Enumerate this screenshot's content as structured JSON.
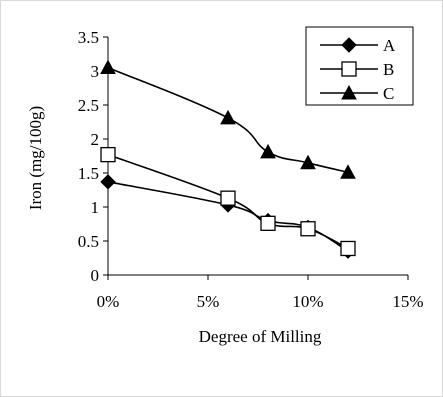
{
  "chart_data": {
    "type": "line",
    "xlabel": "Degree of Milling",
    "ylabel": "Iron (mg/100g)",
    "x_tick_labels": [
      "0%",
      "5%",
      "10%",
      "15%"
    ],
    "y_tick_labels": [
      "0",
      "0.5",
      "1",
      "1.5",
      "2",
      "2.5",
      "3",
      "3.5"
    ],
    "xlim": [
      0,
      15
    ],
    "ylim": [
      0,
      3.5
    ],
    "x_unit": "%",
    "grid": false,
    "legend_position": "top-right",
    "series": [
      {
        "name": "A",
        "marker": "diamond-filled",
        "color": "#000000",
        "x": [
          0,
          6,
          8,
          10,
          12
        ],
        "y": [
          1.37,
          1.03,
          0.8,
          0.7,
          0.35
        ]
      },
      {
        "name": "B",
        "marker": "square-open",
        "color": "#000000",
        "x": [
          0,
          6,
          8,
          10,
          12
        ],
        "y": [
          1.77,
          1.13,
          0.76,
          0.68,
          0.39
        ]
      },
      {
        "name": "C",
        "marker": "triangle-filled",
        "color": "#000000",
        "x": [
          0,
          6,
          8,
          10,
          12
        ],
        "y": [
          3.05,
          2.31,
          1.81,
          1.65,
          1.51
        ]
      }
    ]
  }
}
